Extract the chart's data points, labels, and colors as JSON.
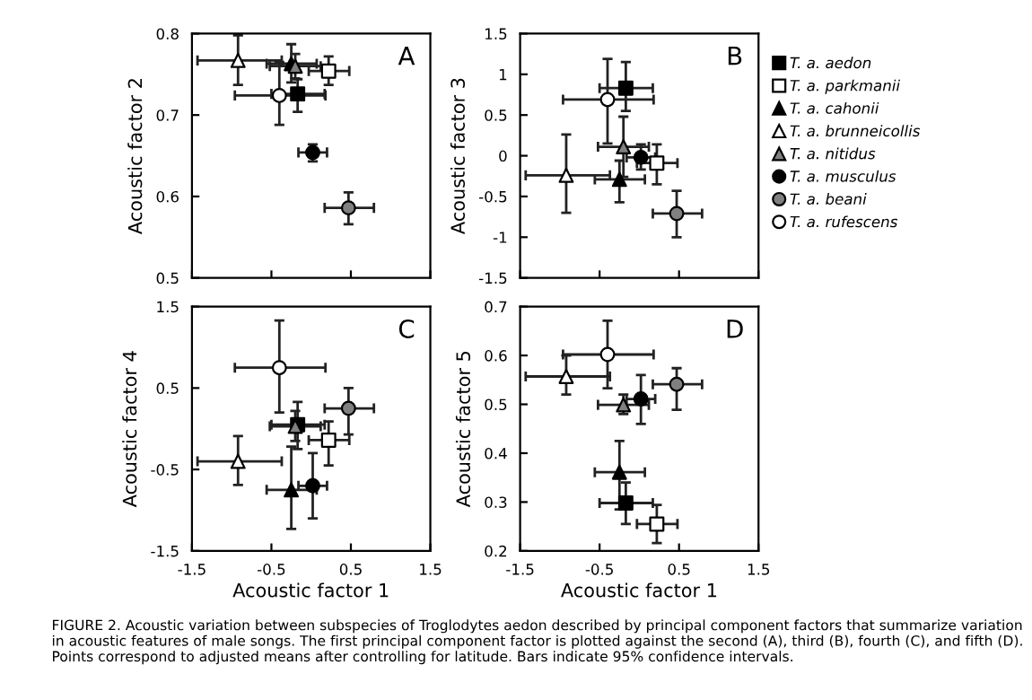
{
  "chart_data": [
    {
      "type": "scatter",
      "xlim": [
        -1.5,
        1.5
      ],
      "xticks": [
        -1.5,
        -0.5,
        0.5,
        1.5
      ],
      "ylim": [
        0.5,
        0.8
      ],
      "yticks": [
        0.5,
        0.6,
        0.7,
        0.8
      ],
      "ylabel": "Acoustic factor 2",
      "tick_labels": "y",
      "legend": false,
      "annotations": [
        "A"
      ],
      "series": [
        {
          "color": "#000000",
          "marker": "square",
          "x": [
            -0.17
          ],
          "values": [
            0.726
          ],
          "errors": [
            [
              0.704,
              0.744
            ]
          ],
          "xerrors": [
            [
              -0.5,
              0.17
            ]
          ]
        },
        {
          "color": "#ffffff",
          "marker": "square",
          "x": [
            0.22
          ],
          "values": [
            0.754
          ],
          "errors": [
            [
              0.737,
              0.772
            ]
          ],
          "xerrors": [
            [
              -0.03,
              0.48
            ]
          ]
        },
        {
          "color": "#000000",
          "marker": "triangle",
          "x": [
            -0.25
          ],
          "values": [
            0.763
          ],
          "errors": [
            [
              0.74,
              0.787
            ]
          ],
          "xerrors": [
            [
              -0.56,
              0.07
            ]
          ]
        },
        {
          "color": "#ffffff",
          "marker": "triangle",
          "x": [
            -0.92
          ],
          "values": [
            0.767
          ],
          "errors": [
            [
              0.737,
              0.798
            ]
          ],
          "xerrors": [
            [
              -1.43,
              -0.37
            ]
          ]
        },
        {
          "color": "#808080",
          "marker": "triangle",
          "x": [
            -0.2
          ],
          "values": [
            0.76
          ],
          "errors": [
            [
              0.745,
              0.775
            ]
          ],
          "xerrors": [
            [
              -0.52,
              0.12
            ]
          ]
        },
        {
          "color": "#000000",
          "marker": "circle",
          "x": [
            0.02
          ],
          "values": [
            0.654
          ],
          "errors": [
            [
              0.643,
              0.664
            ]
          ],
          "xerrors": [
            [
              -0.16,
              0.2
            ]
          ]
        },
        {
          "color": "#808080",
          "marker": "circle",
          "x": [
            0.47
          ],
          "values": [
            0.586
          ],
          "errors": [
            [
              0.566,
              0.605
            ]
          ],
          "xerrors": [
            [
              0.17,
              0.79
            ]
          ]
        },
        {
          "color": "#ffffff",
          "marker": "circle",
          "x": [
            -0.4
          ],
          "values": [
            0.724
          ],
          "errors": [
            [
              0.688,
              0.765
            ]
          ],
          "xerrors": [
            [
              -0.96,
              0.18
            ]
          ]
        }
      ]
    },
    {
      "type": "scatter",
      "xlim": [
        -1.5,
        1.5
      ],
      "xticks": [
        -1.5,
        -0.5,
        0.5,
        1.5
      ],
      "ylim": [
        -1.5,
        1.5
      ],
      "yticks": [
        -1.5,
        -1,
        -0.5,
        0,
        0.5,
        1,
        1.5
      ],
      "ylabel": "Acoustic factor 3",
      "tick_labels": "y",
      "legend": "right",
      "annotations": [
        "B"
      ],
      "series": [
        {
          "name": "T. a. aedon",
          "color": "#000000",
          "marker": "square",
          "x": [
            -0.17
          ],
          "values": [
            0.83
          ],
          "errors": [
            [
              0.55,
              1.15
            ]
          ],
          "xerrors": [
            [
              -0.5,
              0.17
            ]
          ]
        },
        {
          "name": "T. a. parkmanii",
          "color": "#ffffff",
          "marker": "square",
          "x": [
            0.22
          ],
          "values": [
            -0.09
          ],
          "errors": [
            [
              -0.35,
              0.14
            ]
          ],
          "xerrors": [
            [
              -0.03,
              0.48
            ]
          ]
        },
        {
          "name": "T. a. cahonii",
          "color": "#000000",
          "marker": "triangle",
          "x": [
            -0.25
          ],
          "values": [
            -0.29
          ],
          "errors": [
            [
              -0.57,
              -0.06
            ]
          ],
          "xerrors": [
            [
              -0.56,
              0.07
            ]
          ]
        },
        {
          "name": "T. a. brunneicollis",
          "color": "#ffffff",
          "marker": "triangle",
          "x": [
            -0.92
          ],
          "values": [
            -0.24
          ],
          "errors": [
            [
              -0.7,
              0.26
            ]
          ],
          "xerrors": [
            [
              -1.43,
              -0.37
            ]
          ]
        },
        {
          "name": "T. a. nitidus",
          "color": "#808080",
          "marker": "triangle",
          "x": [
            -0.2
          ],
          "values": [
            0.11
          ],
          "errors": [
            [
              -0.26,
              0.48
            ]
          ],
          "xerrors": [
            [
              -0.52,
              0.12
            ]
          ]
        },
        {
          "name": "T. a. musculus",
          "color": "#000000",
          "marker": "circle",
          "x": [
            0.02
          ],
          "values": [
            -0.02
          ],
          "errors": [
            [
              -0.17,
              0.14
            ]
          ],
          "xerrors": [
            [
              -0.16,
              0.2
            ]
          ]
        },
        {
          "name": "T. a. beani",
          "color": "#808080",
          "marker": "circle",
          "x": [
            0.47
          ],
          "values": [
            -0.71
          ],
          "errors": [
            [
              -1.0,
              -0.43
            ]
          ],
          "xerrors": [
            [
              0.17,
              0.79
            ]
          ]
        },
        {
          "name": "T. a. rufescens",
          "color": "#ffffff",
          "marker": "circle",
          "x": [
            -0.4
          ],
          "values": [
            0.69
          ],
          "errors": [
            [
              0.15,
              1.19
            ]
          ],
          "xerrors": [
            [
              -0.96,
              0.18
            ]
          ]
        }
      ]
    },
    {
      "type": "scatter",
      "xlim": [
        -1.5,
        1.5
      ],
      "xticks": [
        -1.5,
        -0.5,
        0.5,
        1.5
      ],
      "ylim": [
        -1.5,
        1.5
      ],
      "yticks": [
        -1.5,
        -0.5,
        0.5,
        1.5
      ],
      "xlabel": "Acoustic factor 1",
      "ylabel": "Acoustic factor 4",
      "legend": false,
      "annotations": [
        "C"
      ],
      "series": [
        {
          "color": "#000000",
          "marker": "square",
          "x": [
            -0.17
          ],
          "values": [
            0.05
          ],
          "errors": [
            [
              -0.25,
              0.33
            ]
          ],
          "xerrors": [
            [
              -0.5,
              0.17
            ]
          ]
        },
        {
          "color": "#ffffff",
          "marker": "square",
          "x": [
            0.22
          ],
          "values": [
            -0.14
          ],
          "errors": [
            [
              -0.45,
              0.09
            ]
          ],
          "xerrors": [
            [
              -0.03,
              0.48
            ]
          ]
        },
        {
          "color": "#000000",
          "marker": "triangle",
          "x": [
            -0.25
          ],
          "values": [
            -0.75
          ],
          "errors": [
            [
              -1.23,
              -0.22
            ]
          ],
          "xerrors": [
            [
              -0.56,
              0.07
            ]
          ]
        },
        {
          "color": "#ffffff",
          "marker": "triangle",
          "x": [
            -0.92
          ],
          "values": [
            -0.4
          ],
          "errors": [
            [
              -0.69,
              -0.09
            ]
          ],
          "xerrors": [
            [
              -1.43,
              -0.37
            ]
          ]
        },
        {
          "color": "#808080",
          "marker": "triangle",
          "x": [
            -0.2
          ],
          "values": [
            0.03
          ],
          "errors": [
            [
              -0.15,
              0.22
            ]
          ],
          "xerrors": [
            [
              -0.52,
              0.12
            ]
          ]
        },
        {
          "color": "#000000",
          "marker": "circle",
          "x": [
            0.02
          ],
          "values": [
            -0.7
          ],
          "errors": [
            [
              -1.1,
              -0.3
            ]
          ],
          "xerrors": [
            [
              -0.16,
              0.2
            ]
          ]
        },
        {
          "color": "#808080",
          "marker": "circle",
          "x": [
            0.47
          ],
          "values": [
            0.25
          ],
          "errors": [
            [
              -0.07,
              0.5
            ]
          ],
          "xerrors": [
            [
              0.17,
              0.79
            ]
          ]
        },
        {
          "color": "#ffffff",
          "marker": "circle",
          "x": [
            -0.4
          ],
          "values": [
            0.75
          ],
          "errors": [
            [
              0.2,
              1.33
            ]
          ],
          "xerrors": [
            [
              -0.96,
              0.18
            ]
          ]
        }
      ]
    },
    {
      "type": "scatter",
      "xlim": [
        -1.5,
        1.5
      ],
      "xticks": [
        -1.5,
        -0.5,
        0.5,
        1.5
      ],
      "ylim": [
        0.2,
        0.7
      ],
      "yticks": [
        0.2,
        0.3,
        0.4,
        0.5,
        0.6,
        0.7
      ],
      "xlabel": "Acoustic factor 1",
      "ylabel": "Acoustic factor 5",
      "legend": false,
      "annotations": [
        "D",
        "FIGURE 2. Acoustic variation between subspecies of Troglodytes aedon described by principal component factors that summarize variation in acoustic features of male songs. The first principal component factor is plotted against the second (A), third (B), fourth (C), and fifth (D). Points correspond to adjusted means after controlling for latitude. Bars indicate 95% confidence intervals."
      ],
      "series": [
        {
          "color": "#000000",
          "marker": "square",
          "x": [
            -0.17
          ],
          "values": [
            0.298
          ],
          "errors": [
            [
              0.255,
              0.34
            ]
          ],
          "xerrors": [
            [
              -0.5,
              0.17
            ]
          ]
        },
        {
          "color": "#ffffff",
          "marker": "square",
          "x": [
            0.22
          ],
          "values": [
            0.255
          ],
          "errors": [
            [
              0.216,
              0.294
            ]
          ],
          "xerrors": [
            [
              -0.03,
              0.48
            ]
          ]
        },
        {
          "color": "#000000",
          "marker": "triangle",
          "x": [
            -0.25
          ],
          "values": [
            0.361
          ],
          "errors": [
            [
              0.285,
              0.425
            ]
          ],
          "xerrors": [
            [
              -0.56,
              0.07
            ]
          ]
        },
        {
          "color": "#ffffff",
          "marker": "triangle",
          "x": [
            -0.92
          ],
          "values": [
            0.557
          ],
          "errors": [
            [
              0.52,
              0.6
            ]
          ],
          "xerrors": [
            [
              -1.43,
              -0.37
            ]
          ]
        },
        {
          "color": "#808080",
          "marker": "triangle",
          "x": [
            -0.2
          ],
          "values": [
            0.499
          ],
          "errors": [
            [
              0.48,
              0.52
            ]
          ],
          "xerrors": [
            [
              -0.52,
              0.12
            ]
          ]
        },
        {
          "color": "#000000",
          "marker": "circle",
          "x": [
            0.02
          ],
          "values": [
            0.511
          ],
          "errors": [
            [
              0.46,
              0.56
            ]
          ],
          "xerrors": [
            [
              -0.16,
              0.2
            ]
          ]
        },
        {
          "color": "#808080",
          "marker": "circle",
          "x": [
            0.47
          ],
          "values": [
            0.541
          ],
          "errors": [
            [
              0.489,
              0.574
            ]
          ],
          "xerrors": [
            [
              0.17,
              0.79
            ]
          ]
        },
        {
          "color": "#ffffff",
          "marker": "circle",
          "x": [
            -0.4
          ],
          "values": [
            0.602
          ],
          "errors": [
            [
              0.533,
              0.671
            ]
          ],
          "xerrors": [
            [
              -0.96,
              0.18
            ]
          ]
        }
      ]
    }
  ]
}
